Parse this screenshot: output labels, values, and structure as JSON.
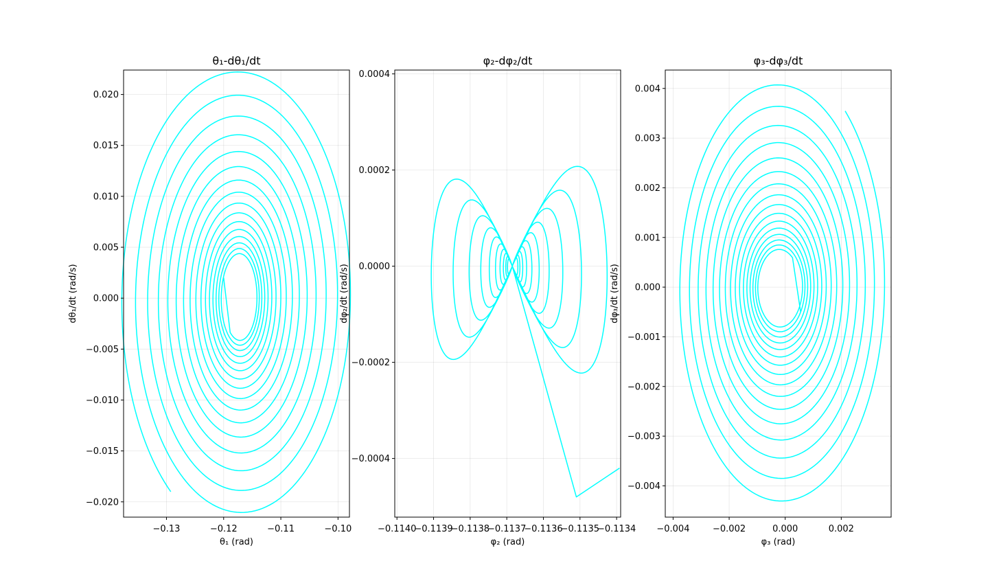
{
  "figure": {
    "line_color": "#00ffff",
    "grid": true
  },
  "chart_data": [
    {
      "type": "line",
      "title": "θ₁-dθ₁/dt",
      "xlabel": "θ₁ (rad)",
      "ylabel": "dθ₁/dt (rad/s)",
      "xlim": [
        -0.1375,
        -0.098
      ],
      "ylim": [
        -0.0215,
        0.0224
      ],
      "xticks": [
        -0.13,
        -0.12,
        -0.11,
        -0.1
      ],
      "xtick_labels": [
        "−0.13",
        "−0.12",
        "−0.11",
        "−0.10"
      ],
      "yticks": [
        -0.02,
        -0.015,
        -0.01,
        -0.005,
        0.0,
        0.005,
        0.01,
        0.015,
        0.02
      ],
      "ytick_labels": [
        "−0.020",
        "−0.015",
        "−0.010",
        "−0.005",
        "0.000",
        "0.005",
        "0.010",
        "0.015",
        "0.020"
      ],
      "series": [
        {
          "kind": "decaying_spiral",
          "center": [
            -0.1172,
            0.0
          ],
          "start_amplitude": [
            0.021,
            0.0232
          ],
          "end_amplitude": [
            0.0029,
            0.0041
          ],
          "start_phase_deg": 235,
          "turns": 16,
          "direction": "clockwise",
          "end_point": [
            -0.12,
            0.002
          ]
        }
      ]
    },
    {
      "type": "line",
      "title": "φ₂-dφ₂/dt",
      "xlabel": "φ₂ (rad)",
      "ylabel": "dφ₂/dt (rad/s)",
      "xlim": [
        -0.114006,
        -0.113389
      ],
      "ylim": [
        -0.000522,
        0.000408
      ],
      "xticks": [
        -0.114,
        -0.1139,
        -0.1138,
        -0.1137,
        -0.1136,
        -0.1135,
        -0.1134
      ],
      "xtick_labels": [
        "−0.1140",
        "−0.1139",
        "−0.1138",
        "−0.1137",
        "−0.1136",
        "−0.1135",
        "−0.1134"
      ],
      "yticks": [
        -0.0004,
        -0.0002,
        0.0,
        0.0002,
        0.0004
      ],
      "ytick_labels": [
        "−0.0004",
        "−0.0002",
        "0.0000",
        "0.0002",
        "0.0004"
      ],
      "series": [
        {
          "kind": "figure_eight_spiral",
          "center": [
            -0.113685,
            0.0
          ],
          "start_amplitude": [
            0.00028,
            0.00046
          ],
          "end_amplitude": [
            1.2e-05,
            3e-05
          ],
          "turns": 10,
          "start_point": [
            -0.113392,
            -0.00042
          ],
          "lower_right_dip": [
            -0.11351,
            -0.00048
          ]
        }
      ]
    },
    {
      "type": "line",
      "title": "φ₃-dφ₃/dt",
      "xlabel": "φ₃ (rad)",
      "ylabel": "dφ₃/dt (rad/s)",
      "xlim": [
        -0.00428,
        0.00378
      ],
      "ylim": [
        -0.00463,
        0.00437
      ],
      "xticks": [
        -0.004,
        -0.002,
        0.0,
        0.002
      ],
      "xtick_labels": [
        "−0.004",
        "−0.002",
        "0.000",
        "0.002"
      ],
      "yticks": [
        -0.004,
        -0.003,
        -0.002,
        -0.001,
        0.0,
        0.001,
        0.002,
        0.003,
        0.004
      ],
      "ytick_labels": [
        "−0.004",
        "−0.003",
        "−0.002",
        "−0.001",
        "0.000",
        "0.001",
        "0.002",
        "0.003",
        "0.004"
      ],
      "series": [
        {
          "kind": "decaying_spiral",
          "center": [
            -0.0002,
            0.0
          ],
          "start_amplitude": [
            0.0038,
            0.0045
          ],
          "end_amplitude": [
            0.00075,
            0.00075
          ],
          "start_phase_deg": 52,
          "turns": 16,
          "direction": "clockwise",
          "end_point": [
            0.00055,
            -0.0005
          ]
        }
      ]
    }
  ]
}
